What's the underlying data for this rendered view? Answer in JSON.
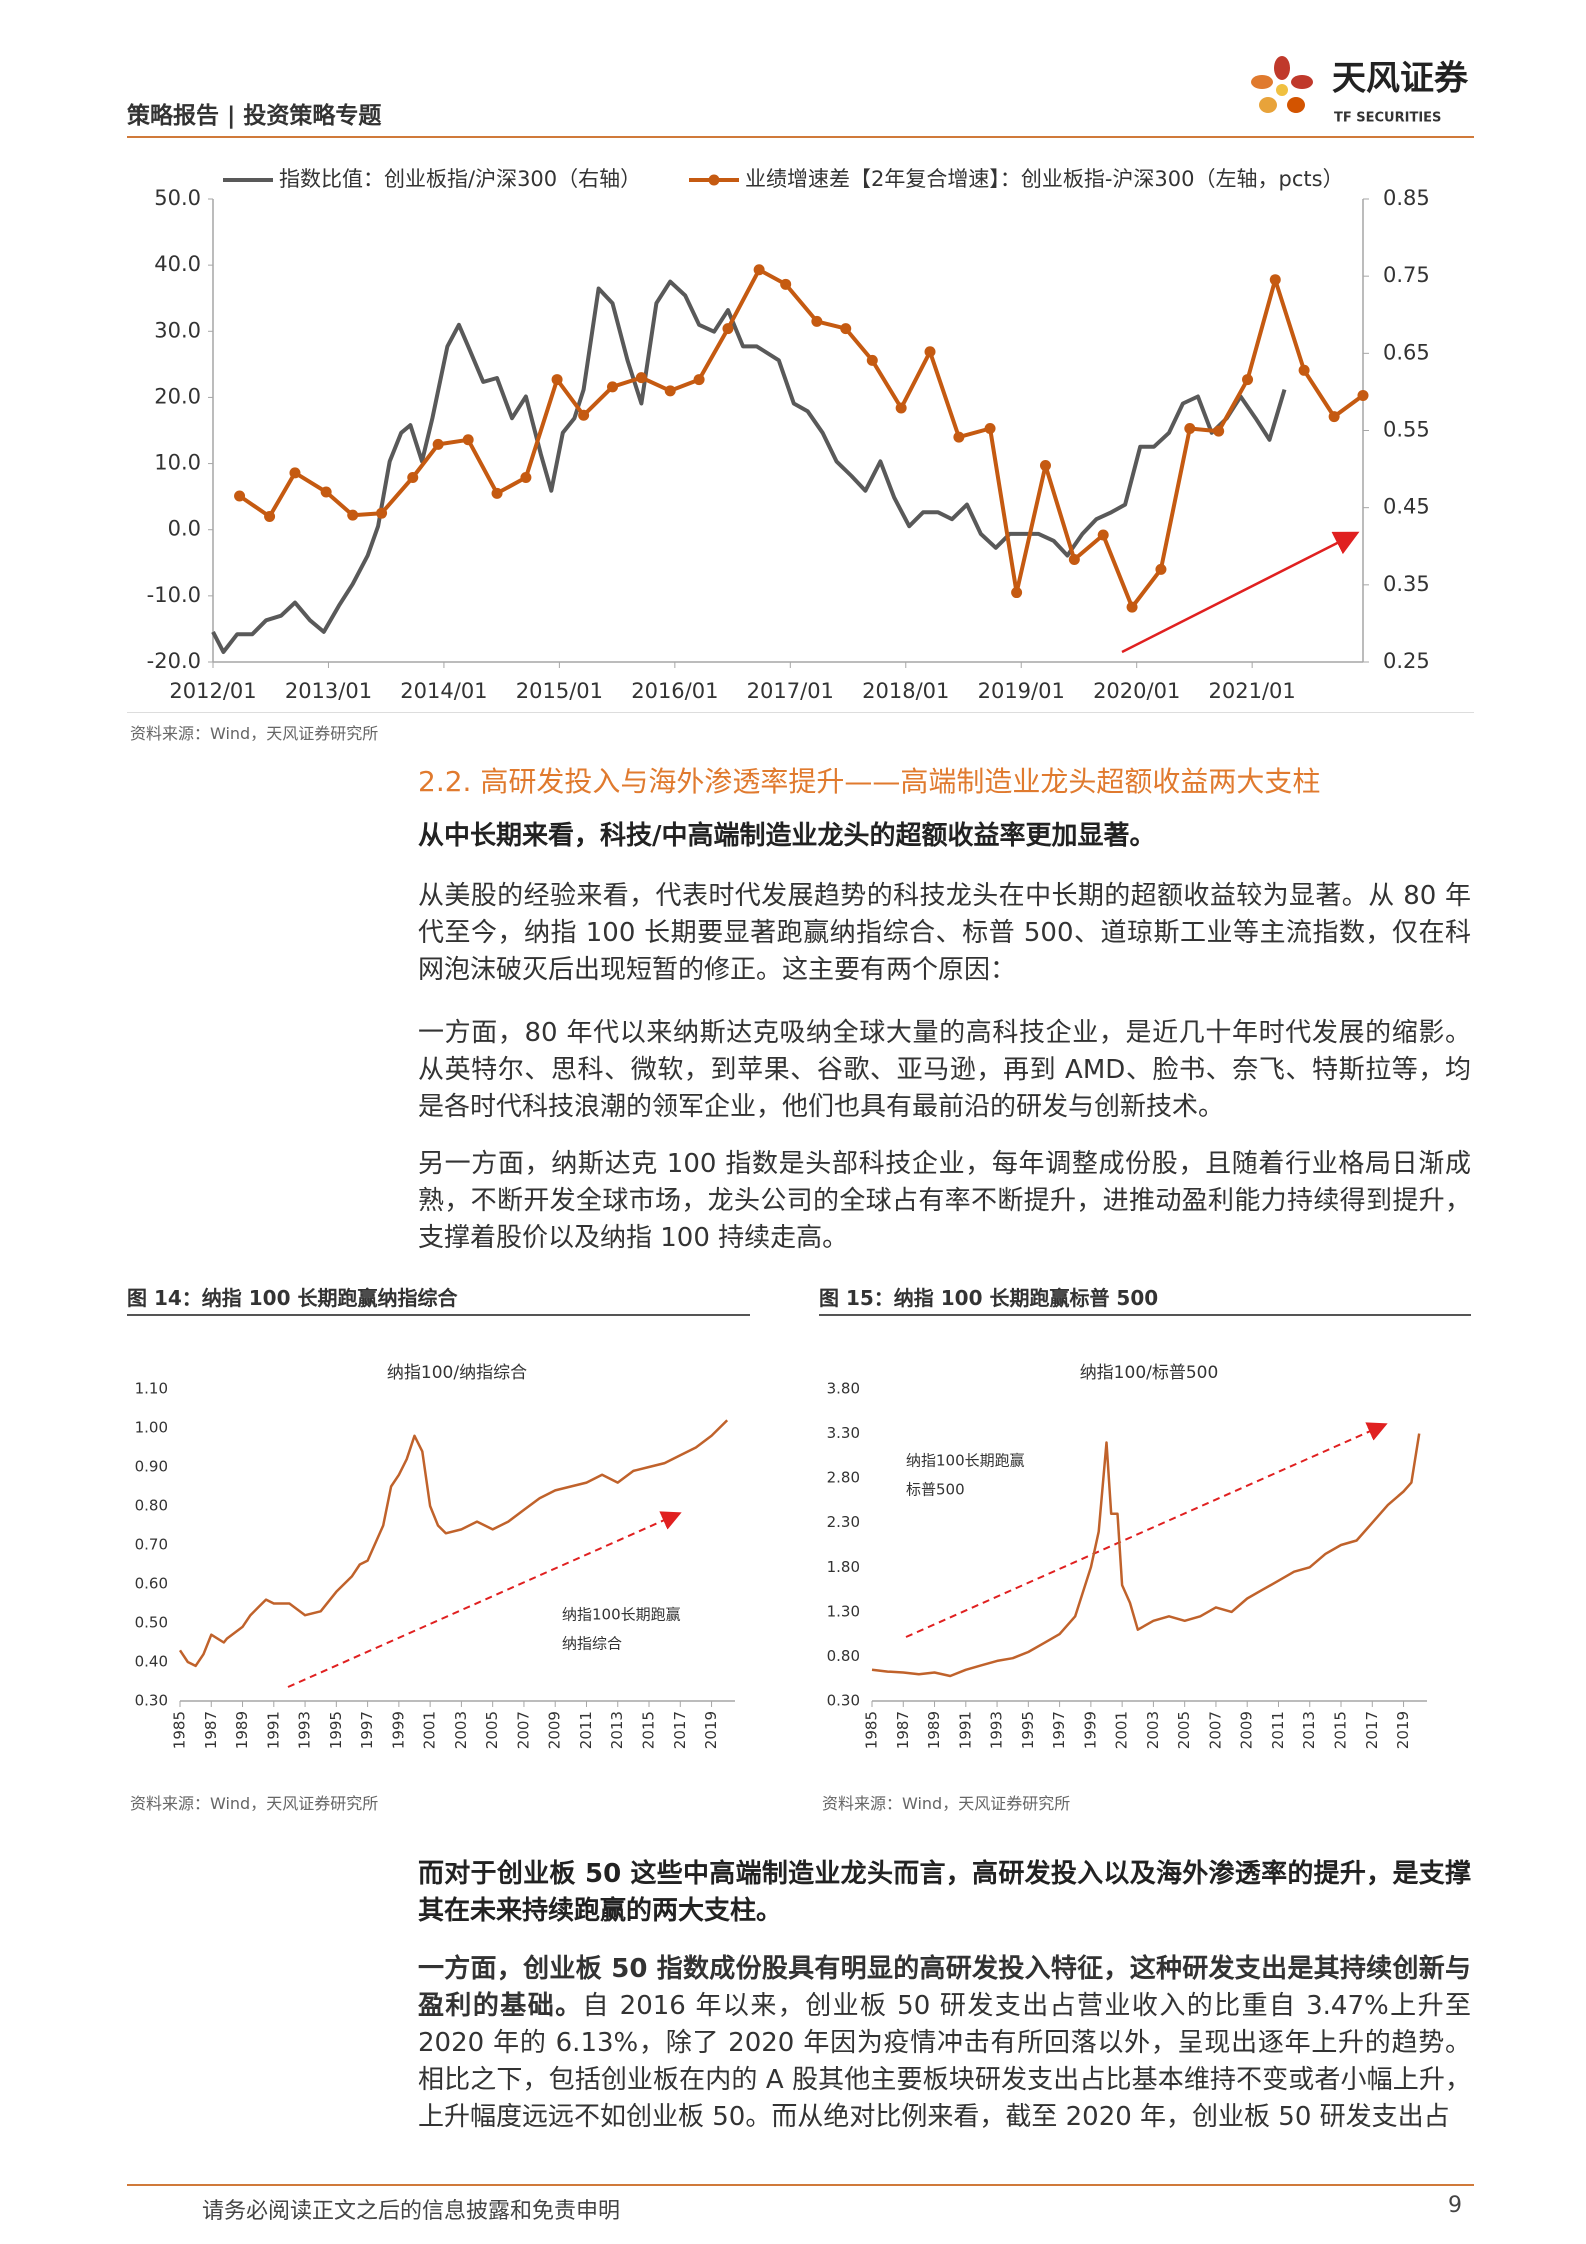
{
  "header": {
    "title": "策略报告 | 投资策略专题",
    "logo_cn": "天风证券",
    "logo_en": "TF SECURITIES"
  },
  "chart_data": [
    {
      "type": "line",
      "xlim": [
        2012,
        2021.96
      ],
      "xticks": [
        {
          "value": 2012,
          "label": "2012/01"
        },
        {
          "value": 2013,
          "label": "2013/01"
        },
        {
          "value": 2014,
          "label": "2014/01"
        },
        {
          "value": 2015,
          "label": "2015/01"
        },
        {
          "value": 2016,
          "label": "2016/01"
        },
        {
          "value": 2017,
          "label": "2017/01"
        },
        {
          "value": 2018,
          "label": "2018/01"
        },
        {
          "value": 2019,
          "label": "2019/01"
        },
        {
          "value": 2020,
          "label": "2020/01"
        },
        {
          "value": 2021,
          "label": "2021/01"
        }
      ],
      "ylim": [
        -20,
        50
      ],
      "yticks": [
        {
          "value": -20,
          "label": "-20.0"
        },
        {
          "value": -10,
          "label": "-10.0"
        },
        {
          "value": 0,
          "label": "0.0"
        },
        {
          "value": 10,
          "label": "10.0"
        },
        {
          "value": 20,
          "label": "20.0"
        },
        {
          "value": 30,
          "label": "30.0"
        },
        {
          "value": 40,
          "label": "40.0"
        },
        {
          "value": 50,
          "label": "50.0"
        }
      ],
      "y2lim": [
        0.25,
        0.85
      ],
      "y2ticks": [
        {
          "value": 0.25,
          "label": "0.25"
        },
        {
          "value": 0.35,
          "label": "0.35"
        },
        {
          "value": 0.45,
          "label": "0.45"
        },
        {
          "value": 0.55,
          "label": "0.55"
        },
        {
          "value": 0.65,
          "label": "0.65"
        },
        {
          "value": 0.75,
          "label": "0.75"
        },
        {
          "value": 0.85,
          "label": "0.85"
        }
      ],
      "series": [
        {
          "name": "指数比值：创业板指/沪深300（右轴）",
          "color": "#595959",
          "axis": "y2",
          "x": [
            2012.0,
            2012.09,
            2012.21,
            2012.34,
            2012.46,
            2012.59,
            2012.71,
            2012.84,
            2012.96,
            2013.09,
            2013.21,
            2013.34,
            2013.43,
            2013.53,
            2013.63,
            2013.71,
            2013.81,
            2013.9,
            2014.03,
            2014.13,
            2014.21,
            2014.34,
            2014.46,
            2014.59,
            2014.71,
            2014.84,
            2014.93,
            2015.03,
            2015.13,
            2015.21,
            2015.34,
            2015.46,
            2015.59,
            2015.71,
            2015.84,
            2015.96,
            2016.09,
            2016.21,
            2016.34,
            2016.46,
            2016.59,
            2016.71,
            2016.9,
            2017.03,
            2017.15,
            2017.28,
            2017.4,
            2017.53,
            2017.65,
            2017.78,
            2017.9,
            2018.03,
            2018.15,
            2018.28,
            2018.4,
            2018.53,
            2018.65,
            2018.78,
            2018.9,
            2019.03,
            2019.15,
            2019.28,
            2019.4,
            2019.53,
            2019.65,
            2019.78,
            2019.9,
            2020.03,
            2020.15,
            2020.28,
            2020.4,
            2020.53,
            2020.65,
            2020.78,
            2020.9,
            2021.03,
            2021.15,
            2021.28
          ],
          "values": [
            0.289,
            0.263,
            0.286,
            0.286,
            0.304,
            0.31,
            0.327,
            0.304,
            0.289,
            0.323,
            0.351,
            0.388,
            0.426,
            0.51,
            0.547,
            0.557,
            0.51,
            0.566,
            0.659,
            0.687,
            0.659,
            0.613,
            0.618,
            0.566,
            0.594,
            0.519,
            0.472,
            0.547,
            0.566,
            0.603,
            0.734,
            0.715,
            0.641,
            0.585,
            0.715,
            0.743,
            0.725,
            0.687,
            0.678,
            0.706,
            0.659,
            0.659,
            0.641,
            0.585,
            0.575,
            0.547,
            0.51,
            0.491,
            0.472,
            0.51,
            0.463,
            0.426,
            0.444,
            0.444,
            0.435,
            0.454,
            0.416,
            0.398,
            0.416,
            0.416,
            0.416,
            0.407,
            0.388,
            0.416,
            0.435,
            0.444,
            0.454,
            0.529,
            0.529,
            0.547,
            0.585,
            0.594,
            0.547,
            0.566,
            0.594,
            0.566,
            0.538,
            0.603
          ]
        },
        {
          "name": "业绩增速差【2年复合增速】：创业板指-沪深300（左轴，pcts）",
          "color": "#c55a11",
          "marker": "circle",
          "x": [
            2012.23,
            2012.49,
            2012.71,
            2012.98,
            2013.21,
            2013.46,
            2013.73,
            2013.95,
            2014.21,
            2014.46,
            2014.71,
            2014.98,
            2015.21,
            2015.46,
            2015.71,
            2015.96,
            2016.21,
            2016.46,
            2016.73,
            2016.96,
            2017.23,
            2017.48,
            2017.71,
            2017.96,
            2018.21,
            2018.46,
            2018.73,
            2018.96,
            2019.21,
            2019.46,
            2019.71,
            2019.96,
            2020.21,
            2020.46,
            2020.71,
            2020.96,
            2021.2,
            2021.45,
            2021.71,
            2021.96
          ],
          "values": [
            5.1,
            2.0,
            8.6,
            5.7,
            2.2,
            2.5,
            7.9,
            12.9,
            13.6,
            5.5,
            7.9,
            22.7,
            17.3,
            21.6,
            23.0,
            21.0,
            22.7,
            30.4,
            39.3,
            37.1,
            31.5,
            30.4,
            25.6,
            18.4,
            26.9,
            14.0,
            15.3,
            -9.5,
            9.7,
            -4.5,
            -0.8,
            -11.7,
            -6.0,
            15.3,
            14.9,
            22.7,
            37.8,
            24.1,
            17.1,
            20.3
          ]
        }
      ]
    },
    {
      "type": "line",
      "title": "纳指100/纳指综合",
      "annotation": [
        "纳指100长期跑赢",
        "纳指综合"
      ],
      "xlim": [
        1985,
        2020.5
      ],
      "xticks": [
        1985,
        1987,
        1989,
        1991,
        1993,
        1995,
        1997,
        1999,
        2001,
        2003,
        2005,
        2007,
        2009,
        2011,
        2013,
        2015,
        2017,
        2019
      ],
      "ylim": [
        0.3,
        1.1
      ],
      "yticks": [
        {
          "value": 0.3,
          "label": "0.30"
        },
        {
          "value": 0.4,
          "label": "0.40"
        },
        {
          "value": 0.5,
          "label": "0.50"
        },
        {
          "value": 0.6,
          "label": "0.60"
        },
        {
          "value": 0.7,
          "label": "0.70"
        },
        {
          "value": 0.8,
          "label": "0.80"
        },
        {
          "value": 0.9,
          "label": "0.90"
        },
        {
          "value": 1.0,
          "label": "1.00"
        },
        {
          "value": 1.1,
          "label": "1.10"
        }
      ],
      "series": [
        {
          "color": "#c0622b",
          "x": [
            1985,
            1985.5,
            1986,
            1986.5,
            1987,
            1987.8,
            1988,
            1989,
            1989.5,
            1990,
            1990.5,
            1991,
            1992,
            1993,
            1994,
            1995,
            1996,
            1996.5,
            1997,
            1998,
            1998.5,
            1999,
            1999.5,
            2000,
            2000.5,
            2001,
            2001.5,
            2002,
            2003,
            2004,
            2005,
            2006,
            2007,
            2008,
            2009,
            2010,
            2011,
            2012,
            2013,
            2014,
            2015,
            2016,
            2017,
            2018,
            2019,
            2020
          ],
          "values": [
            0.43,
            0.4,
            0.39,
            0.42,
            0.47,
            0.45,
            0.46,
            0.49,
            0.52,
            0.54,
            0.56,
            0.55,
            0.55,
            0.52,
            0.53,
            0.58,
            0.62,
            0.65,
            0.66,
            0.75,
            0.85,
            0.88,
            0.92,
            0.98,
            0.94,
            0.8,
            0.75,
            0.73,
            0.74,
            0.76,
            0.74,
            0.76,
            0.79,
            0.82,
            0.84,
            0.85,
            0.86,
            0.88,
            0.86,
            0.89,
            0.9,
            0.91,
            0.93,
            0.95,
            0.98,
            1.02
          ]
        }
      ]
    },
    {
      "type": "line",
      "title": "纳指100/标普500",
      "annotation": [
        "纳指100长期跑赢",
        "标普500"
      ],
      "xlim": [
        1985,
        2020.5
      ],
      "xticks": [
        1985,
        1987,
        1989,
        1991,
        1993,
        1995,
        1997,
        1999,
        2001,
        2003,
        2005,
        2007,
        2009,
        2011,
        2013,
        2015,
        2017,
        2019
      ],
      "ylim": [
        0.3,
        3.8
      ],
      "yticks": [
        {
          "value": 0.3,
          "label": "0.30"
        },
        {
          "value": 0.8,
          "label": "0.80"
        },
        {
          "value": 1.3,
          "label": "1.30"
        },
        {
          "value": 1.8,
          "label": "1.80"
        },
        {
          "value": 2.3,
          "label": "2.30"
        },
        {
          "value": 2.8,
          "label": "2.80"
        },
        {
          "value": 3.3,
          "label": "3.30"
        },
        {
          "value": 3.8,
          "label": "3.80"
        }
      ],
      "series": [
        {
          "color": "#c0622b",
          "x": [
            1985,
            1986,
            1987,
            1988,
            1989,
            1990,
            1991,
            1992,
            1993,
            1994,
            1995,
            1996,
            1997,
            1998,
            1999,
            1999.5,
            2000,
            2000.3,
            2000.7,
            2001,
            2001.5,
            2002,
            2003,
            2004,
            2005,
            2006,
            2007,
            2008,
            2009,
            2010,
            2011,
            2012,
            2013,
            2014,
            2015,
            2016,
            2017,
            2018,
            2019,
            2019.5,
            2020
          ],
          "values": [
            0.65,
            0.63,
            0.62,
            0.6,
            0.62,
            0.58,
            0.65,
            0.7,
            0.75,
            0.78,
            0.85,
            0.95,
            1.05,
            1.25,
            1.8,
            2.2,
            3.2,
            2.4,
            2.4,
            1.6,
            1.4,
            1.1,
            1.2,
            1.25,
            1.2,
            1.25,
            1.35,
            1.3,
            1.45,
            1.55,
            1.65,
            1.75,
            1.8,
            1.95,
            2.05,
            2.1,
            2.3,
            2.5,
            2.65,
            2.75,
            3.3
          ]
        }
      ]
    }
  ],
  "top_chart_source": "资料来源：Wind，天风证券研究所",
  "section": {
    "heading": "2.2. 高研发投入与海外渗透率提升——高端制造业龙头超额收益两大支柱",
    "lead": "从中长期来看，科技/中高端制造业龙头的超额收益率更加显著。",
    "paragraphs": [
      "从美股的经验来看，代表时代发展趋势的科技龙头在中长期的超额收益较为显著。从 80 年代至今，纳指 100 长期要显著跑赢纳指综合、标普 500、道琼斯工业等主流指数，仅在科网泡沫破灭后出现短暂的修正。这主要有两个原因：",
      "一方面，80 年代以来纳斯达克吸纳全球大量的高科技企业，是近几十年时代发展的缩影。从英特尔、思科、微软，到苹果、谷歌、亚马逊，再到 AMD、脸书、奈飞、特斯拉等，均是各时代科技浪潮的领军企业，他们也具有最前沿的研发与创新技术。",
      "另一方面，纳斯达克 100 指数是头部科技企业，每年调整成份股，且随着行业格局日渐成熟，不断开发全球市场，龙头公司的全球占有率不断提升，进推动盈利能力持续得到提升，支撑着股价以及纳指 100 持续走高。"
    ]
  },
  "figures": [
    {
      "caption": "图 14：纳指 100 长期跑赢纳指综合",
      "source": "资料来源：Wind，天风证券研究所"
    },
    {
      "caption": "图 15：纳指 100 长期跑赢标普 500",
      "source": "资料来源：Wind，天风证券研究所"
    }
  ],
  "section2": {
    "lead": "而对于创业板 50 这些中高端制造业龙头而言，高研发投入以及海外渗透率的提升，是支撑其在未来持续跑赢的两大支柱。",
    "paragraph": {
      "bold": "一方面，创业板 50 指数成份股具有明显的高研发投入特征，这种研发支出是其持续创新与盈利的基础。",
      "text": "自 2016 年以来，创业板 50 研发支出占营业收入的比重自 3.47%上升至 2020 年的 6.13%，除了 2020 年因为疫情冲击有所回落以外，呈现出逐年上升的趋势。相比之下，包括创业板在内的 A 股其他主要板块研发支出占比基本维持不变或者小幅上升，上升幅度远远不如创业板 50。而从绝对比例来看，截至 2020 年，创业板 50 研发支出占"
    }
  },
  "footer": {
    "disclaimer": "请务必阅读正文之后的信息披露和免责申明",
    "page": "9"
  }
}
